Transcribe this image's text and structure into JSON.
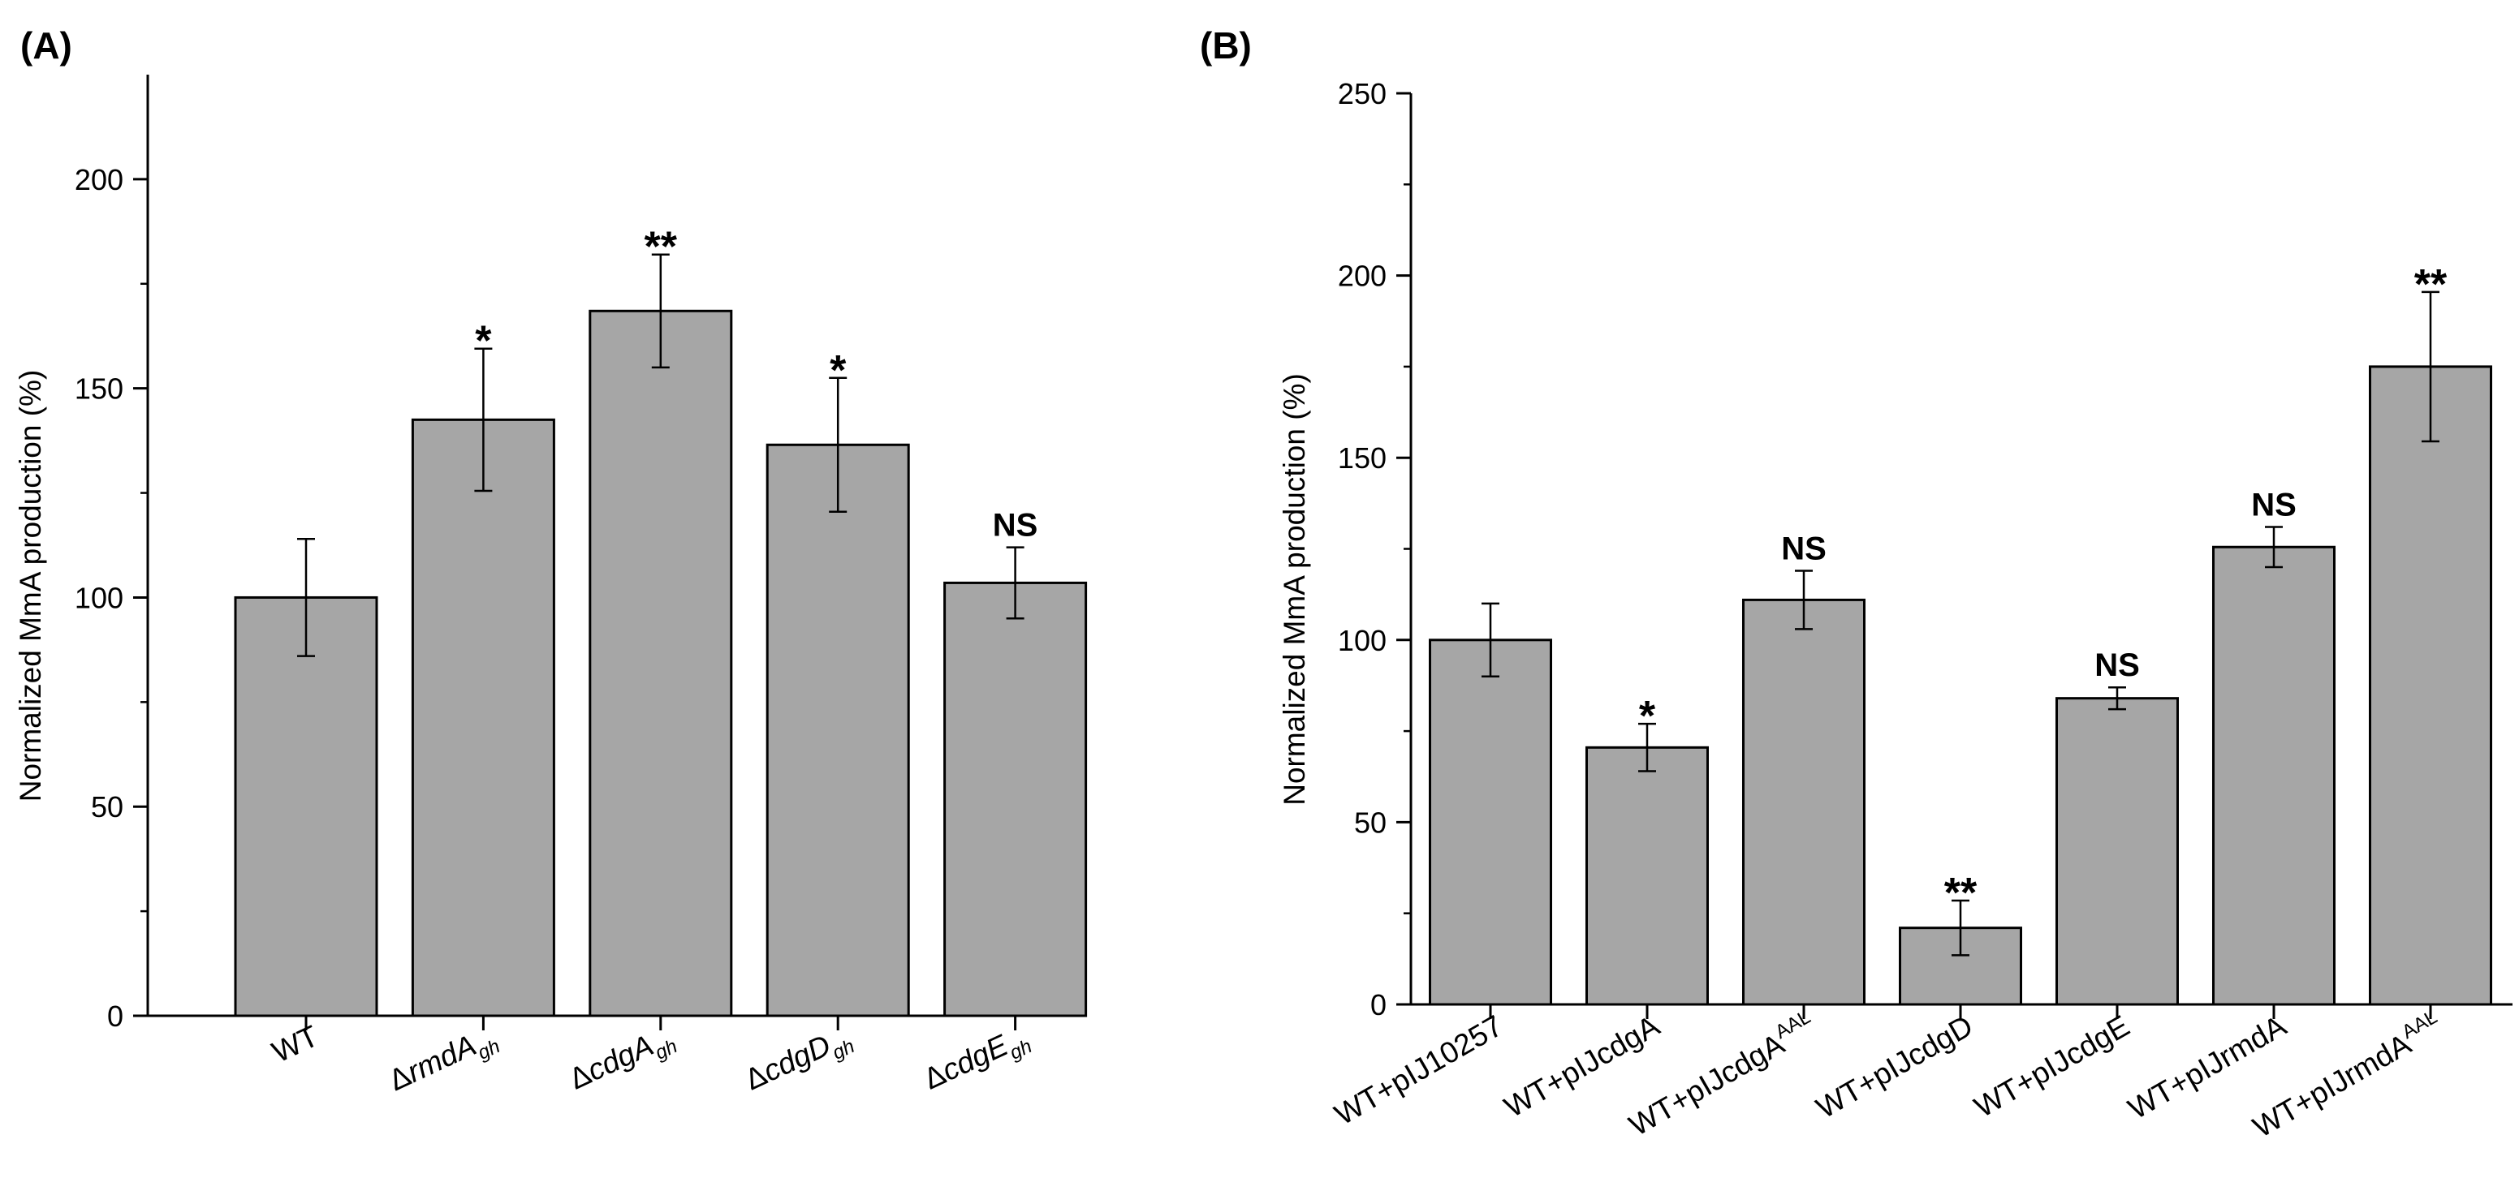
{
  "figure": {
    "colors": {
      "bar_fill": "#a6a6a6",
      "bar_stroke": "#000000",
      "axis": "#000000",
      "background": "#ffffff"
    }
  },
  "chart_data": [
    {
      "type": "bar",
      "panel_label": "(A)",
      "title": "",
      "xlabel": "",
      "ylabel": "Normalized MmA production (%)",
      "ylim": [
        0,
        225
      ],
      "yticks": [
        0,
        50,
        100,
        150,
        200
      ],
      "ytick_labels": [
        "0",
        "50",
        "100",
        "150",
        "200"
      ],
      "minor_tick_step": 25,
      "grid": false,
      "legend": "none",
      "categories": [
        {
          "prefix": "WT",
          "italic": "",
          "sub": ""
        },
        {
          "prefix": "Δ",
          "italic": "rmdA",
          "sub": "gh"
        },
        {
          "prefix": "Δ",
          "italic": "cdgA",
          "sub": "gh"
        },
        {
          "prefix": "Δ",
          "italic": "cdgD",
          "sub": "gh"
        },
        {
          "prefix": "Δ",
          "italic": "cdgE",
          "sub": "gh"
        }
      ],
      "values": [
        100,
        142.5,
        168.5,
        136.5,
        103.5
      ],
      "errors": [
        14,
        17,
        13.5,
        16,
        8.5
      ],
      "significance": [
        "",
        "*",
        "**",
        "*",
        "NS"
      ]
    },
    {
      "type": "bar",
      "panel_label": "(B)",
      "title": "",
      "xlabel": "",
      "ylabel": "Normalized MmA production (%)",
      "ylim": [
        0,
        250
      ],
      "yticks": [
        0,
        50,
        100,
        150,
        200,
        250
      ],
      "ytick_labels": [
        "0",
        "50",
        "100",
        "150",
        "200",
        "250"
      ],
      "minor_tick_step": 25,
      "grid": false,
      "legend": "none",
      "categories": [
        {
          "text": "WT+pIJ10257",
          "sup": ""
        },
        {
          "text": "WT+pIJcdgA",
          "sup": ""
        },
        {
          "text": "WT+pIJcdgA",
          "sup": "AAL"
        },
        {
          "text": "WT+pIJcdgD",
          "sup": ""
        },
        {
          "text": "WT+pIJcdgE",
          "sup": ""
        },
        {
          "text": "WT+pIJrmdA",
          "sup": ""
        },
        {
          "text": "WT+pIJrmdA",
          "sup": "AAL"
        }
      ],
      "values": [
        100,
        70.5,
        111,
        21,
        84,
        125.5,
        175
      ],
      "errors": [
        10,
        6.5,
        8,
        7.5,
        3,
        5.5,
        20.5
      ],
      "significance": [
        "",
        "*",
        "NS",
        "**",
        "NS",
        "NS",
        "**"
      ]
    }
  ]
}
